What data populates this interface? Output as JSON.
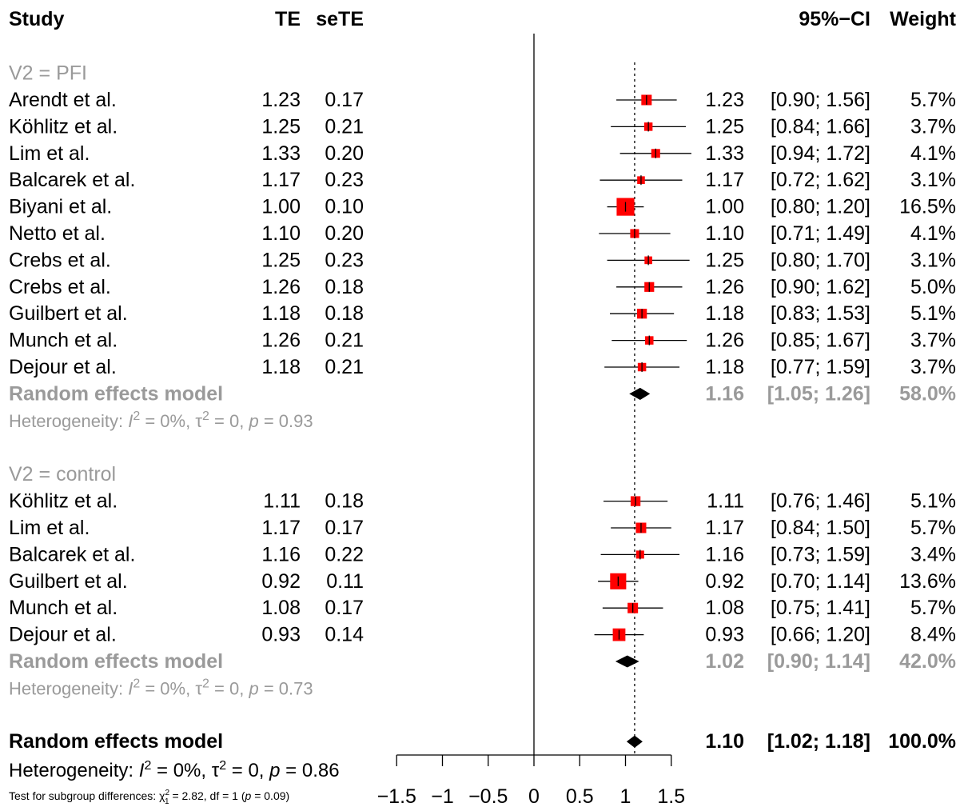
{
  "headers": {
    "study": "Study",
    "te": "TE",
    "sete": "seTE",
    "ci": "95%−CI",
    "weight": "Weight"
  },
  "chart_data": {
    "type": "forest",
    "xlim": [
      -1.5,
      1.5
    ],
    "x_ticks": [
      -1.5,
      -1,
      -0.5,
      0,
      0.5,
      1,
      1.5
    ],
    "x_tick_labels": [
      "−1.5",
      "−1",
      "−0.5",
      "0",
      "0.5",
      "1",
      "1.5"
    ],
    "null_line": 0,
    "overall_reference_line": 1.1,
    "colors": {
      "box": "#ff0000",
      "summary": "#000000",
      "subgroup_text": "#9a9a9a"
    },
    "groups": [
      {
        "label": "V2 = PFI",
        "studies": [
          {
            "study": "Arendt et al.",
            "te": 1.23,
            "sete": 0.17,
            "te_str": "1.23",
            "sete_str": "0.17",
            "ci_low": 0.9,
            "ci_high": 1.56,
            "ci_str": "[0.90; 1.56]",
            "weight": 5.7,
            "weight_str": "5.7%"
          },
          {
            "study": "Köhlitz et al.",
            "te": 1.25,
            "sete": 0.21,
            "te_str": "1.25",
            "sete_str": "0.21",
            "ci_low": 0.84,
            "ci_high": 1.66,
            "ci_str": "[0.84; 1.66]",
            "weight": 3.7,
            "weight_str": "3.7%"
          },
          {
            "study": "Lim et al.",
            "te": 1.33,
            "sete": 0.2,
            "te_str": "1.33",
            "sete_str": "0.20",
            "ci_low": 0.94,
            "ci_high": 1.72,
            "ci_str": "[0.94; 1.72]",
            "weight": 4.1,
            "weight_str": "4.1%"
          },
          {
            "study": "Balcarek et al.",
            "te": 1.17,
            "sete": 0.23,
            "te_str": "1.17",
            "sete_str": "0.23",
            "ci_low": 0.72,
            "ci_high": 1.62,
            "ci_str": "[0.72; 1.62]",
            "weight": 3.1,
            "weight_str": "3.1%"
          },
          {
            "study": "Biyani et al.",
            "te": 1.0,
            "sete": 0.1,
            "te_str": "1.00",
            "sete_str": "0.10",
            "ci_low": 0.8,
            "ci_high": 1.2,
            "ci_str": "[0.80; 1.20]",
            "weight": 16.5,
            "weight_str": "16.5%"
          },
          {
            "study": "Netto et al.",
            "te": 1.1,
            "sete": 0.2,
            "te_str": "1.10",
            "sete_str": "0.20",
            "ci_low": 0.71,
            "ci_high": 1.49,
            "ci_str": "[0.71; 1.49]",
            "weight": 4.1,
            "weight_str": "4.1%"
          },
          {
            "study": "Crebs et al.",
            "te": 1.25,
            "sete": 0.23,
            "te_str": "1.25",
            "sete_str": "0.23",
            "ci_low": 0.8,
            "ci_high": 1.7,
            "ci_str": "[0.80; 1.70]",
            "weight": 3.1,
            "weight_str": "3.1%"
          },
          {
            "study": "Crebs et al.",
            "te": 1.26,
            "sete": 0.18,
            "te_str": "1.26",
            "sete_str": "0.18",
            "ci_low": 0.9,
            "ci_high": 1.62,
            "ci_str": "[0.90; 1.62]",
            "weight": 5.0,
            "weight_str": "5.0%"
          },
          {
            "study": "Guilbert et al.",
            "te": 1.18,
            "sete": 0.18,
            "te_str": "1.18",
            "sete_str": "0.18",
            "ci_low": 0.83,
            "ci_high": 1.53,
            "ci_str": "[0.83; 1.53]",
            "weight": 5.1,
            "weight_str": "5.1%"
          },
          {
            "study": "Munch et al.",
            "te": 1.26,
            "sete": 0.21,
            "te_str": "1.26",
            "sete_str": "0.21",
            "ci_low": 0.85,
            "ci_high": 1.67,
            "ci_str": "[0.85; 1.67]",
            "weight": 3.7,
            "weight_str": "3.7%"
          },
          {
            "study": "Dejour et al.",
            "te": 1.18,
            "sete": 0.21,
            "te_str": "1.18",
            "sete_str": "0.21",
            "ci_low": 0.77,
            "ci_high": 1.59,
            "ci_str": "[0.77; 1.59]",
            "weight": 3.7,
            "weight_str": "3.7%"
          }
        ],
        "summary": {
          "label": "Random effects model",
          "est": 1.16,
          "low": 1.05,
          "high": 1.26,
          "est_str": "1.16",
          "ci_str": "[1.05; 1.26]",
          "weight_str": "58.0%"
        },
        "heterogeneity": {
          "prefix": "Heterogeneity: ",
          "i2": "I",
          "i2_value": " = 0%, ",
          "tau2": "τ",
          "tau2_value": " = 0, ",
          "p": "p",
          "p_value": " = 0.93"
        }
      },
      {
        "label": "V2 = control",
        "studies": [
          {
            "study": "Köhlitz et al.",
            "te": 1.11,
            "sete": 0.18,
            "te_str": "1.11",
            "sete_str": "0.18",
            "ci_low": 0.76,
            "ci_high": 1.46,
            "ci_str": "[0.76; 1.46]",
            "weight": 5.1,
            "weight_str": "5.1%"
          },
          {
            "study": "Lim et al.",
            "te": 1.17,
            "sete": 0.17,
            "te_str": "1.17",
            "sete_str": "0.17",
            "ci_low": 0.84,
            "ci_high": 1.5,
            "ci_str": "[0.84; 1.50]",
            "weight": 5.7,
            "weight_str": "5.7%"
          },
          {
            "study": "Balcarek et al.",
            "te": 1.16,
            "sete": 0.22,
            "te_str": "1.16",
            "sete_str": "0.22",
            "ci_low": 0.73,
            "ci_high": 1.59,
            "ci_str": "[0.73; 1.59]",
            "weight": 3.4,
            "weight_str": "3.4%"
          },
          {
            "study": "Guilbert et al.",
            "te": 0.92,
            "sete": 0.11,
            "te_str": "0.92",
            "sete_str": "0.11",
            "ci_low": 0.7,
            "ci_high": 1.14,
            "ci_str": "[0.70; 1.14]",
            "weight": 13.6,
            "weight_str": "13.6%"
          },
          {
            "study": "Munch et al.",
            "te": 1.08,
            "sete": 0.17,
            "te_str": "1.08",
            "sete_str": "0.17",
            "ci_low": 0.75,
            "ci_high": 1.41,
            "ci_str": "[0.75; 1.41]",
            "weight": 5.7,
            "weight_str": "5.7%"
          },
          {
            "study": "Dejour et al.",
            "te": 0.93,
            "sete": 0.14,
            "te_str": "0.93",
            "sete_str": "0.14",
            "ci_low": 0.66,
            "ci_high": 1.2,
            "ci_str": "[0.66; 1.20]",
            "weight": 8.4,
            "weight_str": "8.4%"
          }
        ],
        "summary": {
          "label": "Random effects model",
          "est": 1.02,
          "low": 0.9,
          "high": 1.14,
          "est_str": "1.02",
          "ci_str": "[0.90; 1.14]",
          "weight_str": "42.0%"
        },
        "heterogeneity": {
          "prefix": "Heterogeneity: ",
          "i2": "I",
          "i2_value": " = 0%, ",
          "tau2": "τ",
          "tau2_value": " = 0, ",
          "p": "p",
          "p_value": " = 0.73"
        }
      }
    ],
    "overall": {
      "label": "Random effects model",
      "est": 1.1,
      "low": 1.02,
      "high": 1.18,
      "est_str": "1.10",
      "ci_str": "[1.02; 1.18]",
      "weight_str": "100.0%",
      "heterogeneity": {
        "prefix": "Heterogeneity: ",
        "i2": "I",
        "i2_value": " = 0%, ",
        "tau2": "τ",
        "tau2_value": " = 0, ",
        "p": "p",
        "p_value": " = 0.86"
      },
      "subgroup_test": {
        "prefix": "Test for subgroup differences: ",
        "chi": "χ",
        "sub": "1",
        "sup": "2",
        "rest": " = 2.82, df = 1 (",
        "p": "p",
        "p_value": " = 0.09)"
      }
    }
  }
}
